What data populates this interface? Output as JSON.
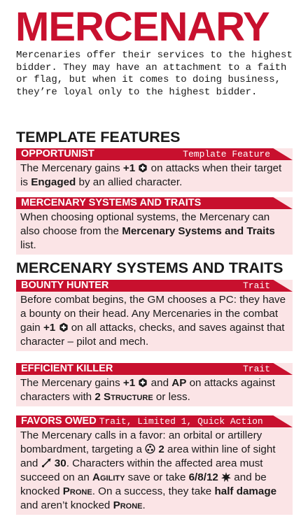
{
  "title": "MERCENARY",
  "intro": "Mercenaries offer their services to the highest bidder. They may have an attachment to a faith or flag, but when it comes to doing business, they’re loyal only to the highest bidder.",
  "sections": {
    "template_features": "TEMPLATE FEATURES",
    "systems_traits": "MERCENARY SYSTEMS AND TRAITS"
  },
  "colors": {
    "accent": "#c8102e",
    "card_bg": "#fbe4e6"
  },
  "cards": {
    "opportunist": {
      "name": "OPPORTUNIST",
      "tag": "Template Feature",
      "t1": "The Mercenary gains ",
      "b1": "+1",
      "t2": " on attacks when their target is ",
      "b2": "Engaged",
      "t3": " by an allied character."
    },
    "systems": {
      "name": "MERCENARY SYSTEMS AND TRAITS",
      "t1": "When choosing optional systems, the Mercenary can also choose from the ",
      "b1": "Mercenary Systems and Traits",
      "t2": " list."
    },
    "bounty": {
      "name": "BOUNTY HUNTER",
      "tag": "Trait",
      "t1": "Before combat begins, the GM chooses a PC: they have a bounty on their head. Any Mercenaries in the combat gain ",
      "b1": "+1",
      "t2": " on all attacks, checks, and saves against that character – pilot and mech."
    },
    "efficient": {
      "name": "EFFICIENT KILLER",
      "tag": "Trait",
      "t1": "The Mercenary gains ",
      "b1": "+1",
      "t2": " and ",
      "b2": "AP",
      "t3": " on attacks against characters with ",
      "b3": "2 Structure",
      "t4": " or less."
    },
    "favors": {
      "name": "FAVORS OWED",
      "tag": "Trait, Limited 1, Quick Action",
      "t1": "The Mercenary calls in a favor: an orbital or artillery bombardment, targeting a ",
      "b1": "2",
      "t2": " area within line of sight and ",
      "b2": "30",
      "t3": ". Characters within the affected area must succeed on an ",
      "b3": "Agility",
      "t4": " save or take ",
      "b4": "6/8/12",
      "t5": " and be knocked ",
      "b5": "Prone",
      "t6": ". On a success, they take ",
      "b6": "half damage",
      "t7": " and aren’t knocked ",
      "b7": "Prone",
      "t8": "."
    }
  },
  "icons": {
    "accuracy": "accuracy-icon",
    "blast": "blast-icon",
    "range": "range-icon",
    "explosive_damage": "explosive-damage-icon"
  }
}
